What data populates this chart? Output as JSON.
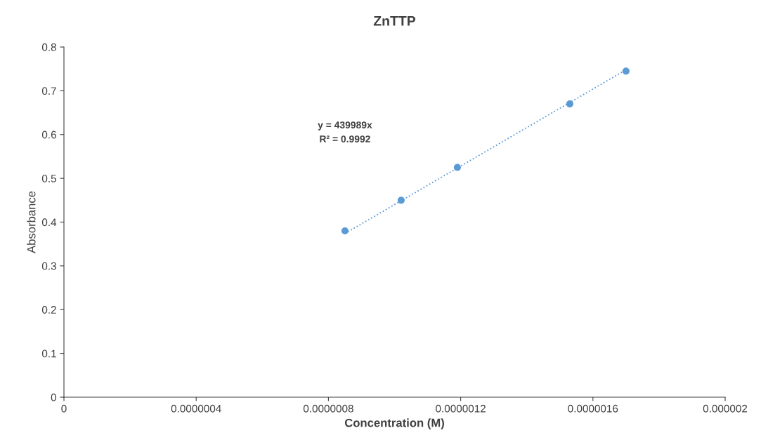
{
  "chart_data": {
    "type": "scatter",
    "title": "ZnTTP",
    "xlabel": "Concentration (M)",
    "ylabel": "Absorbance",
    "series": [
      {
        "color": "#5b9bd5",
        "x": [
          8.5e-07,
          1.02e-06,
          1.19e-06,
          1.53e-06,
          1.7e-06
        ],
        "values": [
          0.38,
          0.45,
          0.525,
          0.67,
          0.745
        ],
        "marker": "circle"
      },
      {
        "type": "line",
        "color": "#5b9bd5",
        "x": [
          8.5e-07,
          1.7e-06
        ],
        "values": [
          0.374,
          0.748
        ],
        "line_style": "dotted",
        "marker": "none"
      }
    ],
    "xlim": [
      0,
      2e-06
    ],
    "xticks": [
      0,
      {
        "value": 4e-07,
        "label": "0.0000004"
      },
      {
        "value": 8e-07,
        "label": "0.0000008"
      },
      {
        "value": 1.2e-06,
        "label": "0.0000012"
      },
      {
        "value": 1.6e-06,
        "label": "0.0000016"
      },
      {
        "value": 2e-06,
        "label": "0.000002"
      }
    ],
    "ylim": [
      0,
      0.8
    ],
    "yticks": [
      0,
      0.1,
      0.2,
      0.3,
      0.4,
      0.5,
      0.6,
      0.7,
      0.8
    ],
    "annotations": [
      "y = 439989x",
      "R² = 0.9992"
    ],
    "grid": false
  }
}
